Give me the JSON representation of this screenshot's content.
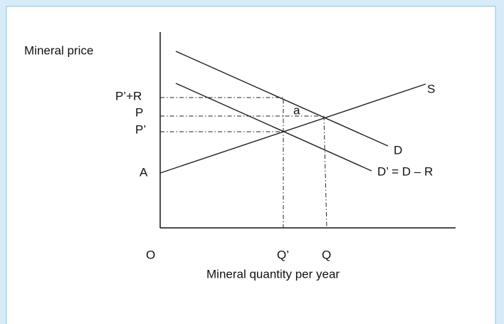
{
  "axes": {
    "y_label": "Mineral price",
    "x_label": "Mineral quantity per year",
    "origin": "O"
  },
  "price_labels": [
    "P’+R",
    "P",
    "P’",
    "A"
  ],
  "quantity_labels": [
    "Q’",
    "Q"
  ],
  "curves": {
    "supply": "S",
    "demand": "D",
    "adjusted_demand": "D’ = D – R"
  },
  "area_label": "a"
}
